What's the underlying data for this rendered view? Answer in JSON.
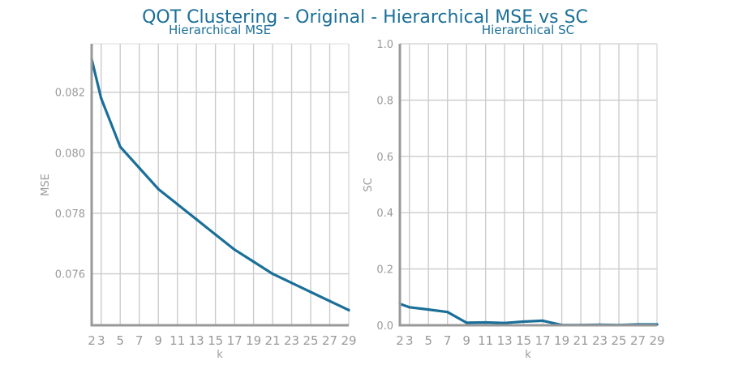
{
  "figure": {
    "title": "QOT Clustering - Original - Hierarchical MSE vs SC"
  },
  "colors": {
    "series": "#1a6f99",
    "title": "#1a6f99",
    "grid": "#cccccc",
    "axis": "#999999",
    "tick_text": "#9a9a9a"
  },
  "chart_data": [
    {
      "type": "line",
      "title": "Hierarchical MSE",
      "xlabel": "k",
      "ylabel": "MSE",
      "x": [
        2,
        3,
        5,
        7,
        9,
        11,
        13,
        15,
        17,
        19,
        21,
        23,
        25,
        27,
        29
      ],
      "series": [
        {
          "values": [
            0.0831,
            0.0818,
            0.0802,
            0.0795,
            0.0788,
            0.0783,
            0.0778,
            0.0773,
            0.0768,
            0.0764,
            0.076,
            0.0757,
            0.0754,
            0.0751,
            0.0748
          ]
        }
      ],
      "xticks": [
        "2",
        "3",
        "5",
        "7",
        "9",
        "11",
        "13",
        "15",
        "17",
        "19",
        "21",
        "23",
        "25",
        "27",
        "29"
      ],
      "yticks": [
        "0.076",
        "0.078",
        "0.080",
        "0.082"
      ],
      "ytick_values": [
        0.076,
        0.078,
        0.08,
        0.082
      ],
      "xlim": [
        2,
        29
      ],
      "ylim": [
        0.0743,
        0.0836
      ],
      "grid": true
    },
    {
      "type": "line",
      "title": "Hierarchical SC",
      "xlabel": "k",
      "ylabel": "SC",
      "x": [
        2,
        3,
        5,
        7,
        9,
        11,
        13,
        15,
        17,
        19,
        21,
        23,
        25,
        27,
        29
      ],
      "series": [
        {
          "values": [
            0.076,
            0.064,
            0.056,
            0.047,
            0.009,
            0.01,
            0.008,
            0.013,
            0.016,
            0.001,
            0.001,
            0.002,
            0.001,
            0.003,
            0.003
          ]
        }
      ],
      "xticks": [
        "2",
        "3",
        "5",
        "7",
        "9",
        "11",
        "13",
        "15",
        "17",
        "19",
        "21",
        "23",
        "25",
        "27",
        "29"
      ],
      "yticks": [
        "0.0",
        "0.2",
        "0.4",
        "0.6",
        "0.8",
        "1.0"
      ],
      "ytick_values": [
        0.0,
        0.2,
        0.4,
        0.6,
        0.8,
        1.0
      ],
      "xlim": [
        2,
        29
      ],
      "ylim": [
        0.0,
        1.0
      ],
      "grid": true
    }
  ]
}
